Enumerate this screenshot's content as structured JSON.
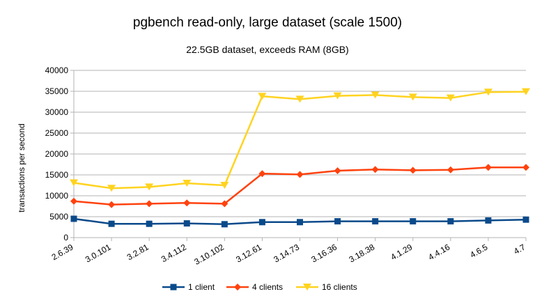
{
  "chart_data": {
    "type": "line",
    "title": "pgbench read-only, large dataset (scale 1500)",
    "subtitle": "22.5GB dataset, exceeds RAM (8GB)",
    "xlabel": "",
    "ylabel": "transactions per second",
    "ylim": [
      0,
      40000
    ],
    "yticks": [
      0,
      5000,
      10000,
      15000,
      20000,
      25000,
      30000,
      35000,
      40000
    ],
    "grid": true,
    "legend_position": "bottom",
    "categories": [
      "2.6.39",
      "3.0.101",
      "3.2.81",
      "3.4.112",
      "3.10.102",
      "3.12.61",
      "3.14.73",
      "3.16.36",
      "3.18.38",
      "4.1.29",
      "4.4.16",
      "4.6.5",
      "4.7"
    ],
    "series": [
      {
        "name": "1 client",
        "color": "#0a4a8a",
        "marker": "square",
        "values": [
          4500,
          3300,
          3300,
          3400,
          3200,
          3700,
          3700,
          3900,
          3900,
          3900,
          3900,
          4100,
          4300
        ]
      },
      {
        "name": "4 clients",
        "color": "#ff420e",
        "marker": "diamond",
        "values": [
          8700,
          7900,
          8100,
          8300,
          8100,
          15300,
          15100,
          16000,
          16300,
          16100,
          16200,
          16800,
          16800
        ]
      },
      {
        "name": "16 clients",
        "color": "#ffd320",
        "marker": "triangle-down",
        "values": [
          13100,
          11800,
          12100,
          13000,
          12500,
          33800,
          33100,
          33900,
          34100,
          33600,
          33400,
          34800,
          34900
        ]
      }
    ]
  }
}
